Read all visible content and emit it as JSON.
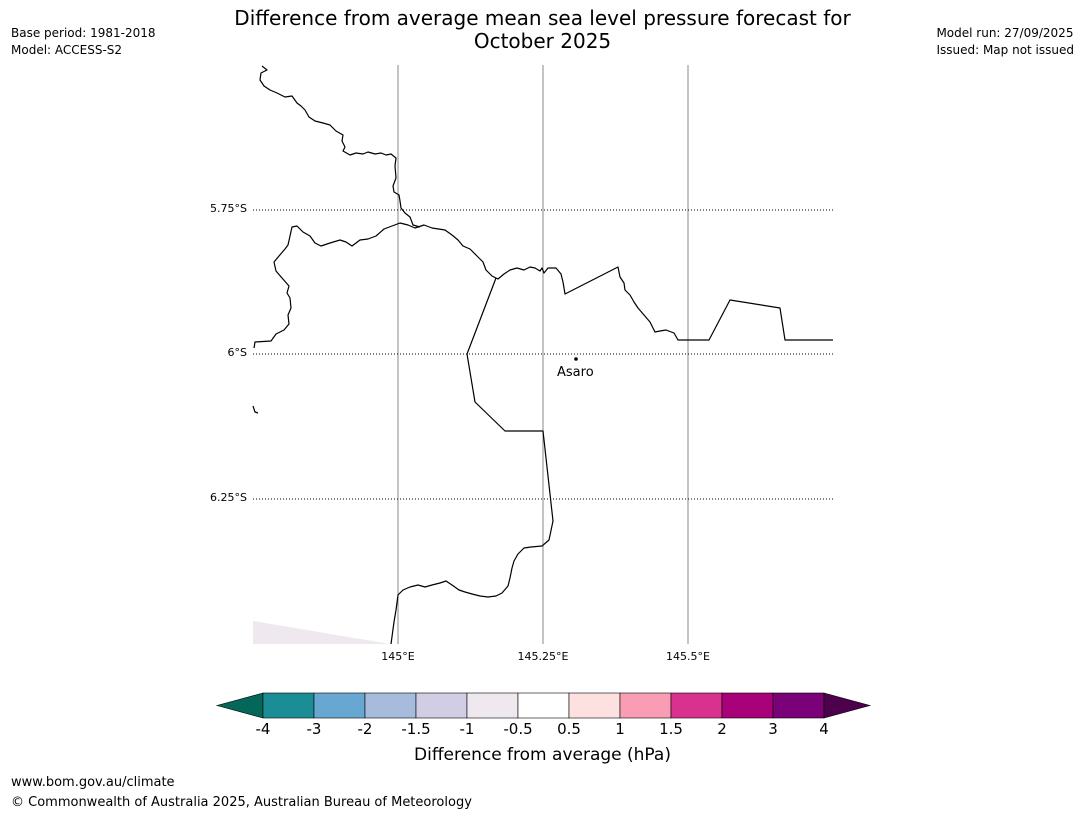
{
  "title_line1": "Difference from average mean sea level pressure forecast for",
  "title_line2": "October 2025",
  "meta_left": {
    "base_period": "Base period: 1981-2018",
    "model": "Model: ACCESS-S2"
  },
  "meta_right": {
    "model_run": "Model run: 27/09/2025",
    "issued": "Issued: Map not issued"
  },
  "map": {
    "lat_labels": [
      "5.75°S",
      "6°S",
      "6.25°S"
    ],
    "lon_labels": [
      "145°E",
      "145.25°E",
      "145.5°E"
    ],
    "place": "Asaro"
  },
  "colorbar": {
    "title": "Difference from average (hPa)",
    "ticks": [
      "-4",
      "-3",
      "-2",
      "-1.5",
      "-1",
      "-0.5",
      "0.5",
      "1",
      "1.5",
      "2",
      "3",
      "4"
    ],
    "colors": [
      "#1b8e95",
      "#66a8d2",
      "#a7bcdc",
      "#d0cde5",
      "#efe9ef",
      "#ffffff",
      "#fde0e0",
      "#f89db4",
      "#d9318e",
      "#a8017a",
      "#7b0179"
    ],
    "extend_low_color": "#05665a",
    "extend_high_color": "#4d004b"
  },
  "footer": {
    "url": "www.bom.gov.au/climate",
    "copyright": "© Commonwealth of Australia 2025, Australian Bureau of Meteorology"
  }
}
